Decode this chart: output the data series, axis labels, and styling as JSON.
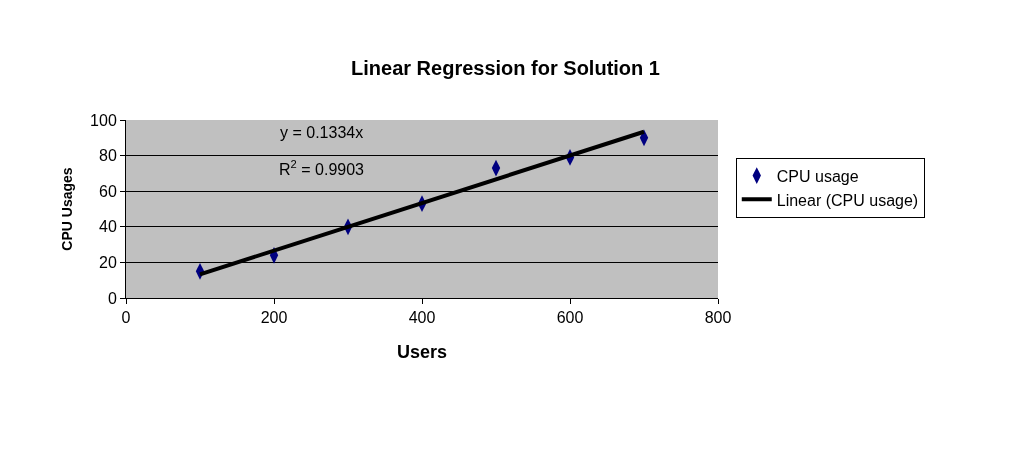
{
  "chart_data": {
    "type": "scatter",
    "title": "Linear Regression for Solution 1",
    "xlabel": "Users",
    "ylabel": "CPU Usages",
    "xlim": [
      0,
      800
    ],
    "xticks": [
      0,
      200,
      400,
      600,
      800
    ],
    "ylim": [
      0,
      100
    ],
    "yticks": [
      0,
      20,
      40,
      60,
      80,
      100
    ],
    "grid": "y",
    "legend": "right",
    "annotations": [
      "y = 0.1334x",
      "R$^{2}$ = 0.9903"
    ],
    "series": [
      {
        "name": "CPU usage",
        "type": "scatter",
        "marker": "diamond",
        "color": "#000080",
        "x": [
          100,
          200,
          300,
          400,
          500,
          600,
          700
        ],
        "values": [
          15,
          24,
          40,
          53,
          73,
          79,
          90
        ]
      },
      {
        "name": "Linear (CPU usage)",
        "type": "line",
        "color": "#000000",
        "x": [
          100,
          700
        ],
        "values": [
          13.3,
          93.4
        ]
      }
    ]
  }
}
